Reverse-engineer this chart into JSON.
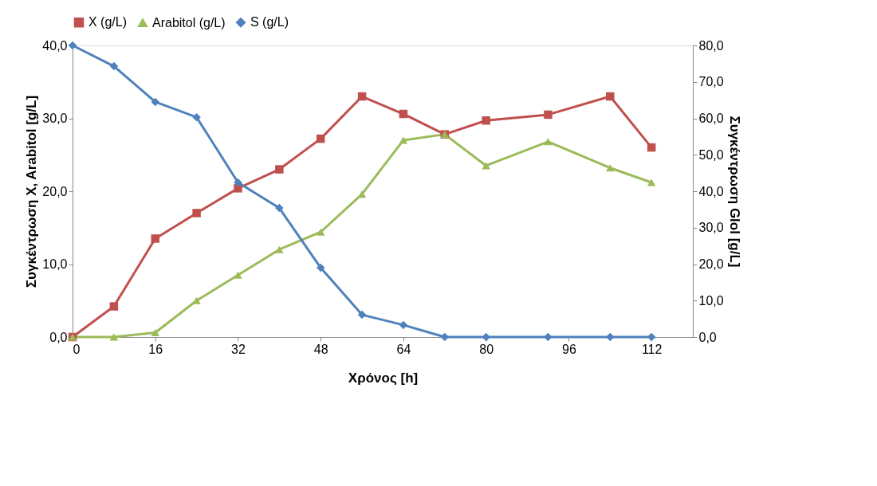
{
  "chart_data": {
    "type": "line",
    "xlabel": "Χρόνος [h]",
    "ylabel": "Συγκέντρωση X, Arabitol [g/L]",
    "y2label": "Συγκέντρωση Glol [g/L]",
    "x": [
      0,
      8,
      16,
      24,
      32,
      40,
      48,
      56,
      64,
      72,
      80,
      92,
      104,
      112
    ],
    "xlim": [
      0,
      120
    ],
    "xticks": [
      0,
      16,
      32,
      48,
      64,
      80,
      96,
      112
    ],
    "ylim": [
      0,
      40
    ],
    "yticks": [
      {
        "value": 0,
        "label": "0,0"
      },
      {
        "value": 10,
        "label": "10,0"
      },
      {
        "value": 20,
        "label": "20,0"
      },
      {
        "value": 30,
        "label": "30,0"
      },
      {
        "value": 40,
        "label": "40,0"
      }
    ],
    "y2lim": [
      0,
      80
    ],
    "y2ticks": [
      {
        "value": 0,
        "label": "0,0"
      },
      {
        "value": 10,
        "label": "10,0"
      },
      {
        "value": 20,
        "label": "20,0"
      },
      {
        "value": 30,
        "label": "30,0"
      },
      {
        "value": 40,
        "label": "40,0"
      },
      {
        "value": 50,
        "label": "50,0"
      },
      {
        "value": 60,
        "label": "60,0"
      },
      {
        "value": 70,
        "label": "70,0"
      },
      {
        "value": 80,
        "label": "80,0"
      }
    ],
    "legend": "top",
    "grid": false,
    "line_style": "solid",
    "series": [
      {
        "name": "X (g/L)",
        "color": "#c0504d",
        "marker": "square",
        "values": [
          0,
          4.2,
          13.5,
          17.0,
          20.4,
          23.0,
          27.2,
          33.0,
          30.6,
          27.8,
          29.7,
          30.5,
          33.0,
          26.0
        ]
      },
      {
        "name": "Arabitol (g/L)",
        "color": "#9bbb59",
        "marker": "triangle",
        "values": [
          0,
          0,
          0.6,
          5.0,
          8.5,
          12.0,
          14.4,
          19.6,
          27.0,
          27.8,
          23.5,
          26.8,
          23.2,
          21.2
        ]
      },
      {
        "name": "S (g/L)",
        "color": "#4f81bd",
        "marker": "diamond",
        "axis": "y2",
        "values": [
          80,
          74.3,
          64.5,
          60.3,
          42.4,
          35.4,
          19.0,
          6.1,
          3.3,
          0,
          0,
          0,
          0,
          0
        ]
      }
    ]
  }
}
